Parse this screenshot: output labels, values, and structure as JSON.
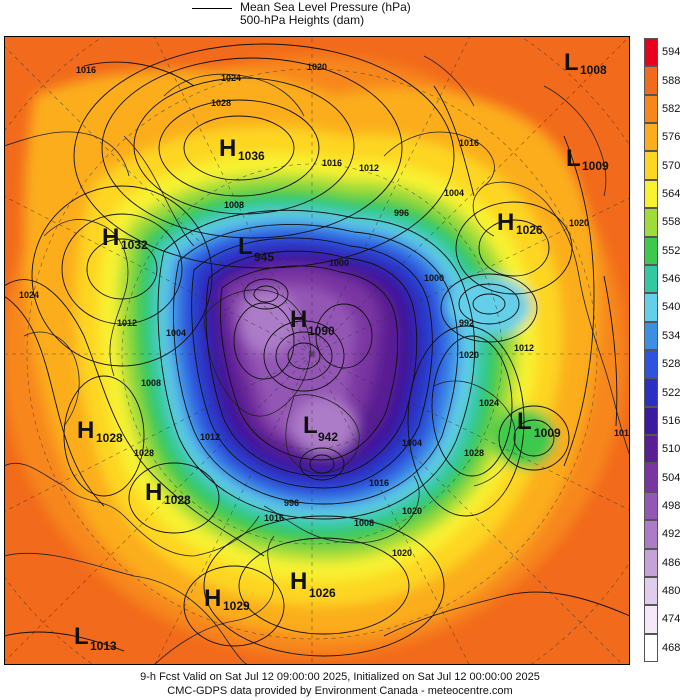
{
  "legend": {
    "line1": "Mean Sea Level Pressure (hPa)",
    "line2": "500-hPa Heights (dam)"
  },
  "colorbar": {
    "labels": [
      "594",
      "588",
      "582",
      "576",
      "570",
      "564",
      "558",
      "552",
      "546",
      "540",
      "534",
      "528",
      "522",
      "516",
      "510",
      "504",
      "498",
      "492",
      "486",
      "480",
      "474",
      "468"
    ],
    "colors": [
      "#e8001c",
      "#f26a1b",
      "#f7871a",
      "#fbad1d",
      "#fdd623",
      "#f8f230",
      "#9fdc3a",
      "#3dc94e",
      "#32c9a2",
      "#64cfe9",
      "#3d8fe6",
      "#2e54df",
      "#2b30c4",
      "#3b19a0",
      "#5a1d93",
      "#7a35a2",
      "#9457b5",
      "#ad7bc8",
      "#c7a2da",
      "#e0cced",
      "#f3e9f8",
      "#ffffff"
    ]
  },
  "pressure_centers": [
    {
      "type": "L",
      "value": "1008"
    },
    {
      "type": "H",
      "value": "1036"
    },
    {
      "type": "L",
      "value": "1009"
    },
    {
      "type": "H",
      "value": "1026"
    },
    {
      "type": "H",
      "value": "1032"
    },
    {
      "type": "L",
      "value": "945"
    },
    {
      "type": "H",
      "value": "1090"
    },
    {
      "type": "L",
      "value": "942"
    },
    {
      "type": "L",
      "value": "1009"
    },
    {
      "type": "H",
      "value": "1028"
    },
    {
      "type": "H",
      "value": "1028"
    },
    {
      "type": "H",
      "value": "1029"
    },
    {
      "type": "H",
      "value": "1026"
    },
    {
      "type": "L",
      "value": "1013"
    }
  ],
  "isobar_labels": [
    "1016",
    "1024",
    "1020",
    "1028",
    "1016",
    "1012",
    "1008",
    "1016",
    "1020",
    "1004",
    "1000",
    "996",
    "992",
    "1012",
    "1016",
    "1020",
    "1012",
    "1008",
    "1004",
    "1000",
    "996",
    "1028",
    "1024",
    "1020",
    "1016",
    "1008",
    "1004",
    "1012",
    "1016",
    "1028",
    "1020",
    "1024"
  ],
  "footer": {
    "line1": "9-h Fcst Valid on Sat Jul 12 09:00:00 2025, Initialized on Sat Jul 12 00:00:00 2025",
    "line2": "CMC-GDPS data provided by Environment Canada - meteocentre.com"
  }
}
